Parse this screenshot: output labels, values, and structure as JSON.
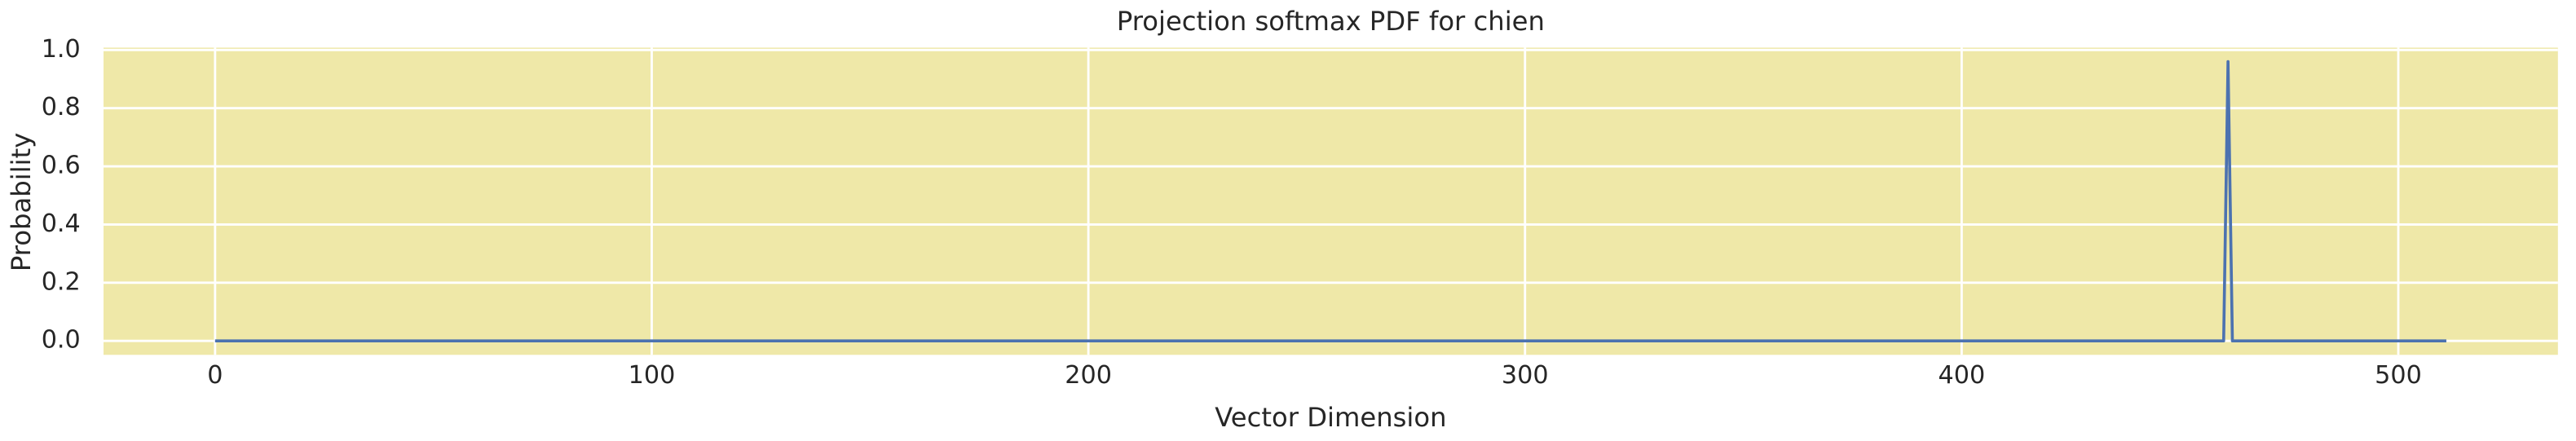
{
  "chart_data": {
    "type": "line",
    "title": "Projection softmax PDF for chien",
    "xlabel": "Vector Dimension",
    "ylabel": "Probability",
    "x": [
      0,
      460,
      461,
      462,
      511
    ],
    "series": [
      {
        "name": "chien",
        "color": "#4c72b0",
        "values": [
          0,
          0,
          0.96,
          0,
          0
        ]
      }
    ],
    "xlim": [
      -25.55,
      536.55
    ],
    "xticks": [
      0,
      100,
      200,
      300,
      400,
      500
    ],
    "ylim": [
      -0.048,
      1.008
    ],
    "yticks": [
      {
        "value": 0,
        "label": "0.0"
      },
      0.2,
      0.4,
      0.6,
      0.8,
      {
        "value": 1,
        "label": "1.0"
      }
    ],
    "grid": true,
    "background": "#efe8a8"
  }
}
